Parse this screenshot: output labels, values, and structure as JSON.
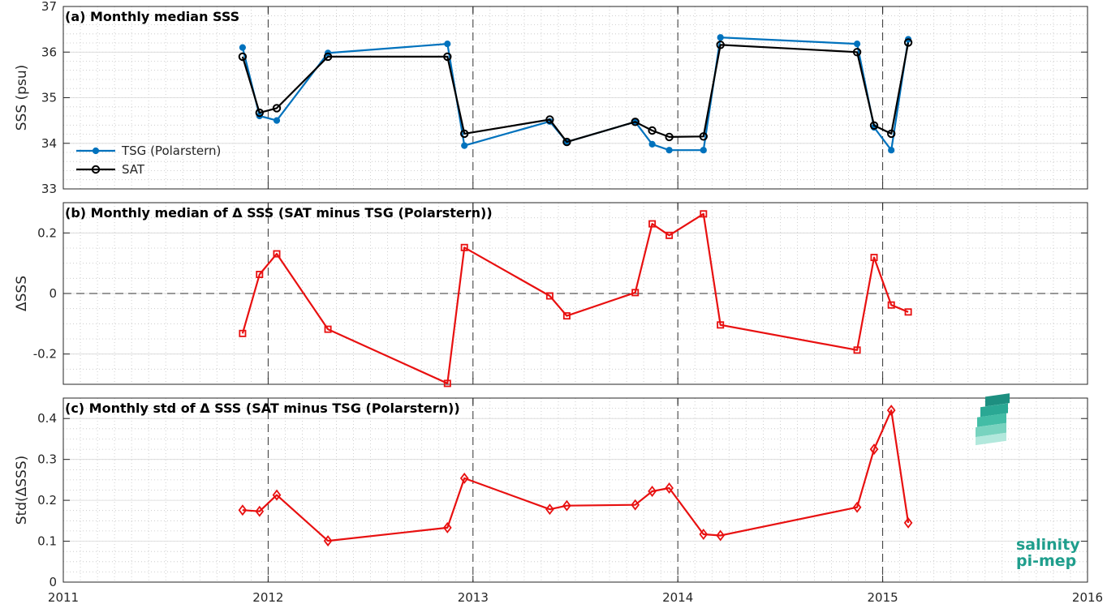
{
  "logo": {
    "line1": "salinity",
    "line2": "pi-mep"
  },
  "colors": {
    "tsg": "#0072BD",
    "sat": "#000000",
    "delta": "#E81010"
  },
  "chart_data": [
    {
      "type": "line",
      "title": "(a) Monthly median SSS",
      "xlabel": "",
      "ylabel": "SSS (psu)",
      "xlim": [
        2011,
        2016
      ],
      "ylim": [
        33,
        37
      ],
      "xticks": [
        "2011",
        "2012",
        "2013",
        "2014",
        "2015",
        "2016"
      ],
      "yticks": [
        "33",
        "34",
        "35",
        "36",
        "37"
      ],
      "grid": true,
      "legend_position": "bottom-left",
      "x": [
        2011.875,
        2011.958,
        2012.042,
        2012.292,
        2012.875,
        2012.958,
        2013.375,
        2013.458,
        2013.792,
        2013.875,
        2013.958,
        2014.125,
        2014.208,
        2014.875,
        2014.958,
        2015.042,
        2015.125
      ],
      "series": [
        {
          "name": "TSG (Polarstern)",
          "marker": "dot",
          "values": [
            36.1,
            34.6,
            34.5,
            35.98,
            36.18,
            33.95,
            34.48,
            34.03,
            34.47,
            33.98,
            33.85,
            33.85,
            36.32,
            36.18,
            34.35,
            33.85,
            36.28
          ]
        },
        {
          "name": "SAT",
          "marker": "circle",
          "values": [
            35.9,
            34.67,
            34.77,
            35.9,
            35.9,
            34.21,
            34.52,
            34.03,
            34.47,
            34.28,
            34.14,
            34.15,
            36.16,
            36.0,
            34.39,
            34.21,
            36.21
          ]
        }
      ]
    },
    {
      "type": "line",
      "title": "(b) Monthly median of Δ SSS (SAT minus TSG (Polarstern))",
      "xlabel": "",
      "ylabel": "ΔSSS",
      "xlim": [
        2011,
        2016
      ],
      "ylim": [
        -0.3,
        0.3
      ],
      "xticks": [
        "2011",
        "2012",
        "2013",
        "2014",
        "2015",
        "2016"
      ],
      "yticks": [
        "-0.2",
        "0",
        "0.2"
      ],
      "grid": true,
      "x": [
        2011.875,
        2011.958,
        2012.042,
        2012.292,
        2012.875,
        2012.958,
        2013.375,
        2013.458,
        2013.792,
        2013.875,
        2013.958,
        2014.125,
        2014.208,
        2014.875,
        2014.958,
        2015.042,
        2015.125
      ],
      "series": [
        {
          "name": "",
          "marker": "square",
          "values": [
            -0.132,
            0.063,
            0.131,
            -0.118,
            -0.297,
            0.152,
            -0.008,
            -0.074,
            0.003,
            0.23,
            0.192,
            0.263,
            -0.104,
            -0.187,
            0.119,
            -0.038,
            -0.061
          ]
        }
      ]
    },
    {
      "type": "line",
      "title": "(c) Monthly std of Δ SSS (SAT minus TSG (Polarstern))",
      "xlabel": "",
      "ylabel": "Std(ΔSSS)",
      "xlim": [
        2011,
        2016
      ],
      "ylim": [
        0,
        0.45
      ],
      "xticks": [
        "2011",
        "2012",
        "2013",
        "2014",
        "2015",
        "2016"
      ],
      "yticks": [
        "0",
        "0.1",
        "0.2",
        "0.3",
        "0.4"
      ],
      "grid": true,
      "x": [
        2011.875,
        2011.958,
        2012.042,
        2012.292,
        2012.875,
        2012.958,
        2013.375,
        2013.458,
        2013.792,
        2013.875,
        2013.958,
        2014.125,
        2014.208,
        2014.875,
        2014.958,
        2015.042,
        2015.125
      ],
      "series": [
        {
          "name": "",
          "marker": "diamond",
          "values": [
            0.176,
            0.173,
            0.213,
            0.101,
            0.133,
            0.254,
            0.178,
            0.187,
            0.189,
            0.222,
            0.23,
            0.117,
            0.114,
            0.183,
            0.325,
            0.42,
            0.145
          ]
        }
      ]
    }
  ]
}
